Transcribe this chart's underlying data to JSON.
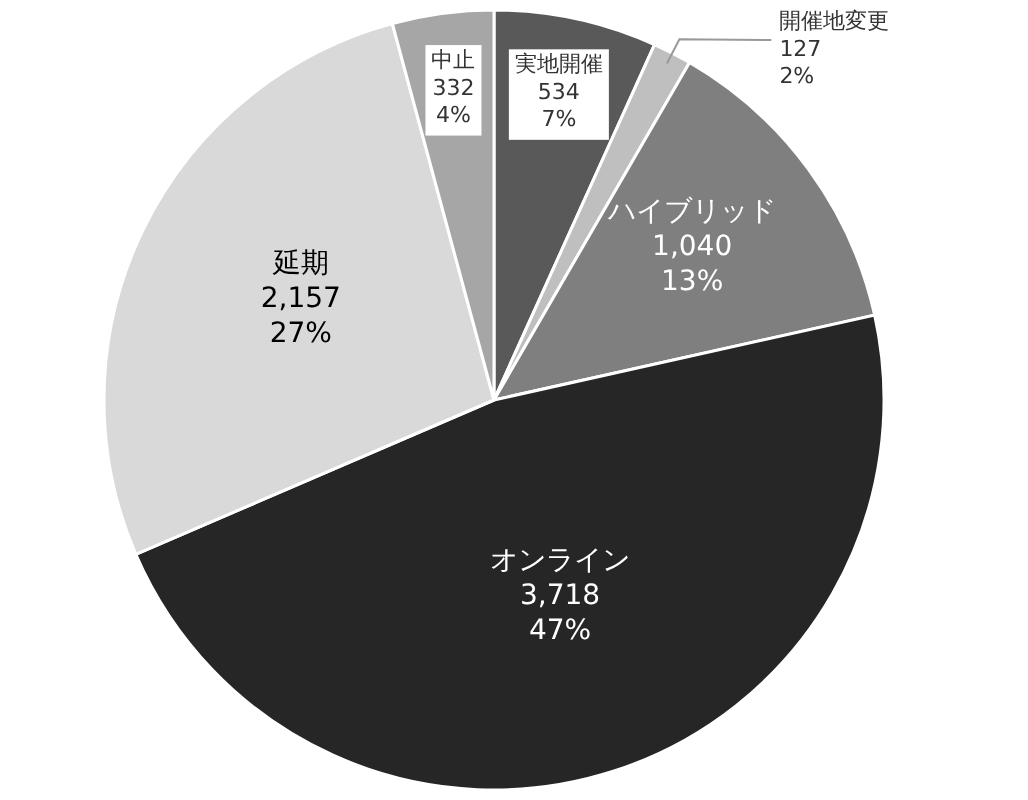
{
  "chart_data": {
    "type": "pie",
    "categories": [
      "実地開催",
      "開催地変更",
      "ハイブリッド",
      "オンライン",
      "延期",
      "中止"
    ],
    "values": [
      534,
      127,
      1040,
      3718,
      2157,
      332
    ],
    "value_labels": [
      "534\n7%",
      "127\n2%",
      "1,040\n13%",
      "3,718\n47%",
      "2,157\n27%",
      "332\n4%"
    ],
    "colors": [
      "#595959",
      "#bfbfbf",
      "#7f7f7f",
      "#262626",
      "#d9d9d9",
      "#a6a6a6"
    ],
    "legend": false
  }
}
